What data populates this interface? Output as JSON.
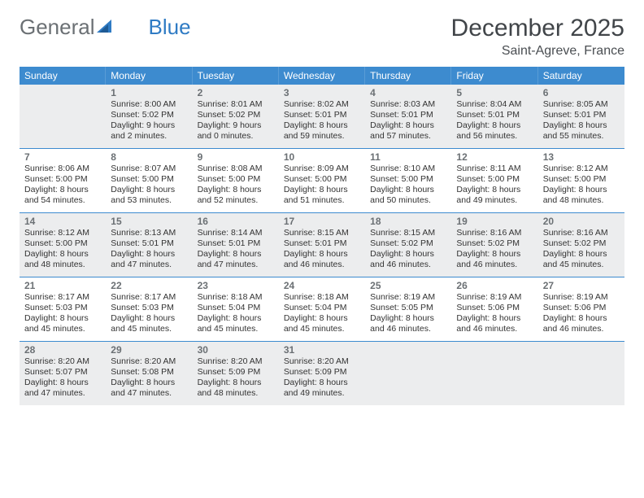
{
  "brand": {
    "part1": "General",
    "part2": "Blue",
    "icon_color": "#2f7bc4",
    "part1_color": "#6b7074"
  },
  "title": "December 2025",
  "location": "Saint-Agreve, France",
  "colors": {
    "header_bg": "#3d8bcf",
    "header_text": "#ffffff",
    "shaded_bg": "#ecedee",
    "divider": "#3d8bcf",
    "body_bg": "#ffffff",
    "text": "#333333",
    "daynum": "#6b7074"
  },
  "day_headers": [
    "Sunday",
    "Monday",
    "Tuesday",
    "Wednesday",
    "Thursday",
    "Friday",
    "Saturday"
  ],
  "weeks": [
    {
      "shaded": true,
      "cells": [
        {
          "blank": true
        },
        {
          "num": "1",
          "sunrise": "Sunrise: 8:00 AM",
          "sunset": "Sunset: 5:02 PM",
          "daylight": "Daylight: 9 hours and 2 minutes."
        },
        {
          "num": "2",
          "sunrise": "Sunrise: 8:01 AM",
          "sunset": "Sunset: 5:02 PM",
          "daylight": "Daylight: 9 hours and 0 minutes."
        },
        {
          "num": "3",
          "sunrise": "Sunrise: 8:02 AM",
          "sunset": "Sunset: 5:01 PM",
          "daylight": "Daylight: 8 hours and 59 minutes."
        },
        {
          "num": "4",
          "sunrise": "Sunrise: 8:03 AM",
          "sunset": "Sunset: 5:01 PM",
          "daylight": "Daylight: 8 hours and 57 minutes."
        },
        {
          "num": "5",
          "sunrise": "Sunrise: 8:04 AM",
          "sunset": "Sunset: 5:01 PM",
          "daylight": "Daylight: 8 hours and 56 minutes."
        },
        {
          "num": "6",
          "sunrise": "Sunrise: 8:05 AM",
          "sunset": "Sunset: 5:01 PM",
          "daylight": "Daylight: 8 hours and 55 minutes."
        }
      ]
    },
    {
      "shaded": false,
      "cells": [
        {
          "num": "7",
          "sunrise": "Sunrise: 8:06 AM",
          "sunset": "Sunset: 5:00 PM",
          "daylight": "Daylight: 8 hours and 54 minutes."
        },
        {
          "num": "8",
          "sunrise": "Sunrise: 8:07 AM",
          "sunset": "Sunset: 5:00 PM",
          "daylight": "Daylight: 8 hours and 53 minutes."
        },
        {
          "num": "9",
          "sunrise": "Sunrise: 8:08 AM",
          "sunset": "Sunset: 5:00 PM",
          "daylight": "Daylight: 8 hours and 52 minutes."
        },
        {
          "num": "10",
          "sunrise": "Sunrise: 8:09 AM",
          "sunset": "Sunset: 5:00 PM",
          "daylight": "Daylight: 8 hours and 51 minutes."
        },
        {
          "num": "11",
          "sunrise": "Sunrise: 8:10 AM",
          "sunset": "Sunset: 5:00 PM",
          "daylight": "Daylight: 8 hours and 50 minutes."
        },
        {
          "num": "12",
          "sunrise": "Sunrise: 8:11 AM",
          "sunset": "Sunset: 5:00 PM",
          "daylight": "Daylight: 8 hours and 49 minutes."
        },
        {
          "num": "13",
          "sunrise": "Sunrise: 8:12 AM",
          "sunset": "Sunset: 5:00 PM",
          "daylight": "Daylight: 8 hours and 48 minutes."
        }
      ]
    },
    {
      "shaded": true,
      "cells": [
        {
          "num": "14",
          "sunrise": "Sunrise: 8:12 AM",
          "sunset": "Sunset: 5:00 PM",
          "daylight": "Daylight: 8 hours and 48 minutes."
        },
        {
          "num": "15",
          "sunrise": "Sunrise: 8:13 AM",
          "sunset": "Sunset: 5:01 PM",
          "daylight": "Daylight: 8 hours and 47 minutes."
        },
        {
          "num": "16",
          "sunrise": "Sunrise: 8:14 AM",
          "sunset": "Sunset: 5:01 PM",
          "daylight": "Daylight: 8 hours and 47 minutes."
        },
        {
          "num": "17",
          "sunrise": "Sunrise: 8:15 AM",
          "sunset": "Sunset: 5:01 PM",
          "daylight": "Daylight: 8 hours and 46 minutes."
        },
        {
          "num": "18",
          "sunrise": "Sunrise: 8:15 AM",
          "sunset": "Sunset: 5:02 PM",
          "daylight": "Daylight: 8 hours and 46 minutes."
        },
        {
          "num": "19",
          "sunrise": "Sunrise: 8:16 AM",
          "sunset": "Sunset: 5:02 PM",
          "daylight": "Daylight: 8 hours and 46 minutes."
        },
        {
          "num": "20",
          "sunrise": "Sunrise: 8:16 AM",
          "sunset": "Sunset: 5:02 PM",
          "daylight": "Daylight: 8 hours and 45 minutes."
        }
      ]
    },
    {
      "shaded": false,
      "cells": [
        {
          "num": "21",
          "sunrise": "Sunrise: 8:17 AM",
          "sunset": "Sunset: 5:03 PM",
          "daylight": "Daylight: 8 hours and 45 minutes."
        },
        {
          "num": "22",
          "sunrise": "Sunrise: 8:17 AM",
          "sunset": "Sunset: 5:03 PM",
          "daylight": "Daylight: 8 hours and 45 minutes."
        },
        {
          "num": "23",
          "sunrise": "Sunrise: 8:18 AM",
          "sunset": "Sunset: 5:04 PM",
          "daylight": "Daylight: 8 hours and 45 minutes."
        },
        {
          "num": "24",
          "sunrise": "Sunrise: 8:18 AM",
          "sunset": "Sunset: 5:04 PM",
          "daylight": "Daylight: 8 hours and 45 minutes."
        },
        {
          "num": "25",
          "sunrise": "Sunrise: 8:19 AM",
          "sunset": "Sunset: 5:05 PM",
          "daylight": "Daylight: 8 hours and 46 minutes."
        },
        {
          "num": "26",
          "sunrise": "Sunrise: 8:19 AM",
          "sunset": "Sunset: 5:06 PM",
          "daylight": "Daylight: 8 hours and 46 minutes."
        },
        {
          "num": "27",
          "sunrise": "Sunrise: 8:19 AM",
          "sunset": "Sunset: 5:06 PM",
          "daylight": "Daylight: 8 hours and 46 minutes."
        }
      ]
    },
    {
      "shaded": true,
      "cells": [
        {
          "num": "28",
          "sunrise": "Sunrise: 8:20 AM",
          "sunset": "Sunset: 5:07 PM",
          "daylight": "Daylight: 8 hours and 47 minutes."
        },
        {
          "num": "29",
          "sunrise": "Sunrise: 8:20 AM",
          "sunset": "Sunset: 5:08 PM",
          "daylight": "Daylight: 8 hours and 47 minutes."
        },
        {
          "num": "30",
          "sunrise": "Sunrise: 8:20 AM",
          "sunset": "Sunset: 5:09 PM",
          "daylight": "Daylight: 8 hours and 48 minutes."
        },
        {
          "num": "31",
          "sunrise": "Sunrise: 8:20 AM",
          "sunset": "Sunset: 5:09 PM",
          "daylight": "Daylight: 8 hours and 49 minutes."
        },
        {
          "blank": true
        },
        {
          "blank": true
        },
        {
          "blank": true
        }
      ]
    }
  ]
}
